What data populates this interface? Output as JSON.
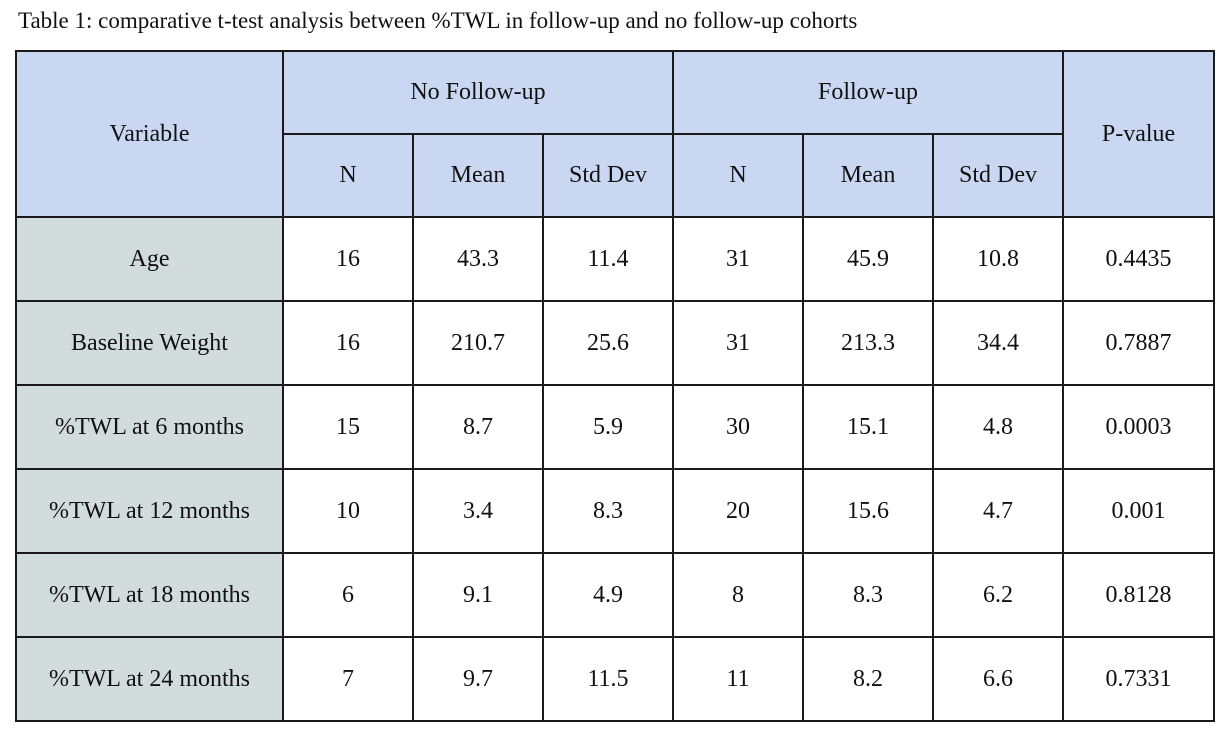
{
  "caption": "Table 1: comparative t-test analysis between %TWL in follow-up and no follow-up cohorts",
  "table": {
    "header": {
      "variable": "Variable",
      "group_no_followup": "No Follow-up",
      "group_followup": "Follow-up",
      "pvalue": "P-value",
      "sub": [
        "N",
        "Mean",
        "Std Dev",
        "N",
        "Mean",
        "Std Dev"
      ]
    },
    "rows": [
      {
        "variable": "Age",
        "nf_n": "16",
        "nf_mean": "43.3",
        "nf_sd": "11.4",
        "f_n": "31",
        "f_mean": "45.9",
        "f_sd": "10.8",
        "p": "0.4435"
      },
      {
        "variable": "Baseline Weight",
        "nf_n": "16",
        "nf_mean": "210.7",
        "nf_sd": "25.6",
        "f_n": "31",
        "f_mean": "213.3",
        "f_sd": "34.4",
        "p": "0.7887"
      },
      {
        "variable": "%TWL at 6 months",
        "nf_n": "15",
        "nf_mean": "8.7",
        "nf_sd": "5.9",
        "f_n": "30",
        "f_mean": "15.1",
        "f_sd": "4.8",
        "p": "0.0003"
      },
      {
        "variable": "%TWL at 12 months",
        "nf_n": "10",
        "nf_mean": "3.4",
        "nf_sd": "8.3",
        "f_n": "20",
        "f_mean": "15.6",
        "f_sd": "4.7",
        "p": "0.001"
      },
      {
        "variable": "%TWL at 18 months",
        "nf_n": "6",
        "nf_mean": "9.1",
        "nf_sd": "4.9",
        "f_n": "8",
        "f_mean": "8.3",
        "f_sd": "6.2",
        "p": "0.8128"
      },
      {
        "variable": "%TWL at 24 months",
        "nf_n": "7",
        "nf_mean": "9.7",
        "nf_sd": "11.5",
        "f_n": "11",
        "f_mean": "8.2",
        "f_sd": "6.6",
        "p": "0.7331"
      }
    ]
  },
  "colors": {
    "header_bg": "#c9d7f2",
    "variable_col_bg": "#d3dcdd",
    "border": "#1a1a1a"
  }
}
